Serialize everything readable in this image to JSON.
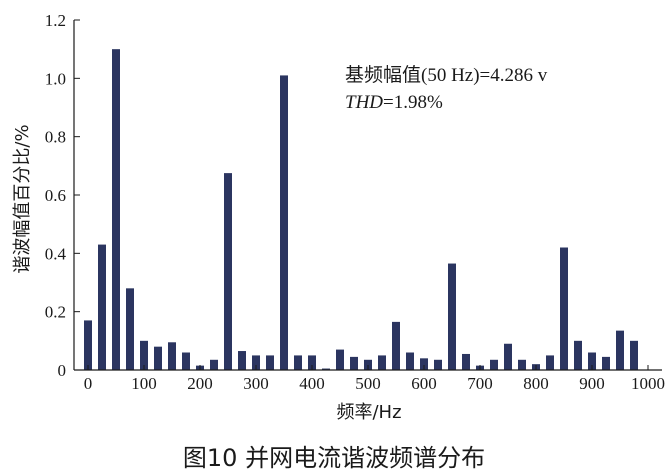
{
  "chart_data": {
    "type": "bar",
    "xlabel": "频率/Hz",
    "ylabel": "谐波幅值百分比/%",
    "xlim": [
      -25,
      1025
    ],
    "ylim": [
      0,
      1.2
    ],
    "xticks": [
      0,
      100,
      200,
      300,
      400,
      500,
      600,
      700,
      800,
      900,
      1000
    ],
    "yticks": [
      0,
      0.2,
      0.4,
      0.6,
      0.8,
      1.0,
      1.2
    ],
    "ytick_labels": [
      "0",
      "0.2",
      "0.4",
      "0.6",
      "0.8",
      "1.0",
      "1.2"
    ],
    "grid": false,
    "color": "#2b3560",
    "x": [
      0,
      25,
      50,
      75,
      100,
      125,
      150,
      175,
      200,
      225,
      250,
      275,
      300,
      325,
      350,
      375,
      400,
      425,
      450,
      475,
      500,
      525,
      550,
      575,
      600,
      625,
      650,
      675,
      700,
      725,
      750,
      775,
      800,
      825,
      850,
      875,
      900,
      925,
      950,
      975
    ],
    "values": [
      0.17,
      0.43,
      1.1,
      0.28,
      0.1,
      0.08,
      0.095,
      0.06,
      0.015,
      0.035,
      0.675,
      0.065,
      0.05,
      0.05,
      1.01,
      0.05,
      0.05,
      0.005,
      0.07,
      0.045,
      0.035,
      0.05,
      0.165,
      0.06,
      0.04,
      0.035,
      0.365,
      0.055,
      0.015,
      0.035,
      0.09,
      0.035,
      0.02,
      0.05,
      0.42,
      0.1,
      0.06,
      0.045,
      0.135,
      0.1
    ],
    "annotations": [
      {
        "text": "基频幅值(50 Hz)=4.286 v"
      },
      {
        "text_italic": "THD",
        "text_rest": "=1.98%"
      }
    ]
  },
  "caption": "图10 并网电流谐波频谱分布"
}
